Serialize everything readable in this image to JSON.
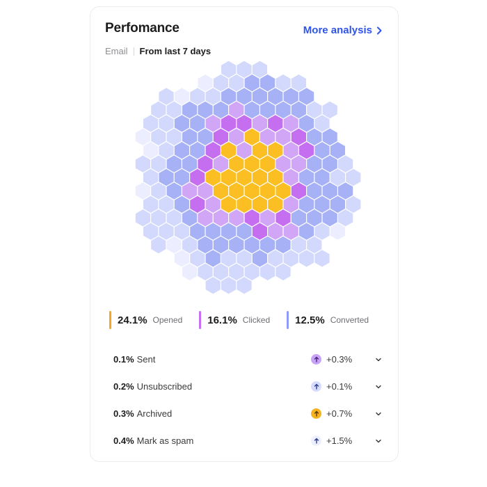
{
  "header": {
    "title": "Perfomance",
    "more_link": "More analysis",
    "channel": "Email",
    "period": "From last 7 days"
  },
  "heatmap": {
    "legend": [
      {
        "value": "24.1%",
        "label": "Opened",
        "color": "#f5a623"
      },
      {
        "value": "16.1%",
        "label": "Clicked",
        "color": "#c86ff0"
      },
      {
        "value": "12.5%",
        "label": "Converted",
        "color": "#8f9cf5"
      }
    ],
    "colors": [
      "#eceeff",
      "#d3d9fc",
      "#a7b1f6",
      "#d1a6f6",
      "#c66ef0",
      "#fbbf24"
    ]
  },
  "metrics": [
    {
      "value": "0.1%",
      "label": "Sent",
      "delta": "+0.3%",
      "badge_bg": "#c7a3f5",
      "arrow_color": "#4a2380"
    },
    {
      "value": "0.2%",
      "label": "Unsubscribed",
      "delta": "+0.1%",
      "badge_bg": "#d6dcfb",
      "arrow_color": "#2f3f8a"
    },
    {
      "value": "0.3%",
      "label": "Archived",
      "delta": "+0.7%",
      "badge_bg": "#f5b323",
      "arrow_color": "#5a3a00"
    },
    {
      "value": "0.4%",
      "label": "Mark as spam",
      "delta": "+1.5%",
      "badge_bg": "#ecefff",
      "arrow_color": "#2f3f8a"
    }
  ]
}
